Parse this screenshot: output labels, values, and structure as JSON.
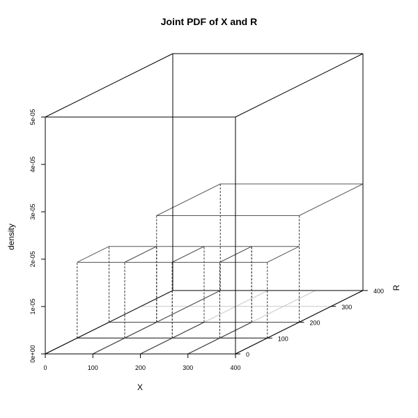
{
  "chart_data": {
    "type": "3d-bar",
    "title": "Joint PDF of X and R",
    "xlabel": "X",
    "ylabel": "R",
    "zlabel": "density",
    "xlim": [
      0,
      400
    ],
    "ylim": [
      0,
      400
    ],
    "zlim": [
      0,
      5e-05
    ],
    "x_ticks": [
      "0",
      "100",
      "200",
      "300",
      "400"
    ],
    "y_ticks": [
      "0",
      "100",
      "200",
      "300",
      "400"
    ],
    "z_ticks": [
      "0e+00",
      "1e-05",
      "2e-05",
      "3e-05",
      "4e-05",
      "5e-05"
    ],
    "grid": true,
    "bars": [
      {
        "x": [
          0,
          100
        ],
        "r": [
          0,
          100
        ],
        "density": 0
      },
      {
        "x": [
          100,
          200
        ],
        "r": [
          0,
          100
        ],
        "density": 0
      },
      {
        "x": [
          200,
          300
        ],
        "r": [
          0,
          100
        ],
        "density": 0
      },
      {
        "x": [
          300,
          400
        ],
        "r": [
          0,
          100
        ],
        "density": 0
      },
      {
        "x": [
          0,
          100
        ],
        "r": [
          100,
          200
        ],
        "density": 1.6e-05
      },
      {
        "x": [
          100,
          200
        ],
        "r": [
          100,
          200
        ],
        "density": 1.6e-05
      },
      {
        "x": [
          200,
          300
        ],
        "r": [
          100,
          200
        ],
        "density": 1.6e-05
      },
      {
        "x": [
          300,
          400
        ],
        "r": [
          100,
          200
        ],
        "density": 1.6e-05
      },
      {
        "x": [
          100,
          400
        ],
        "r": [
          200,
          400
        ],
        "density": 2.25e-05
      }
    ]
  }
}
